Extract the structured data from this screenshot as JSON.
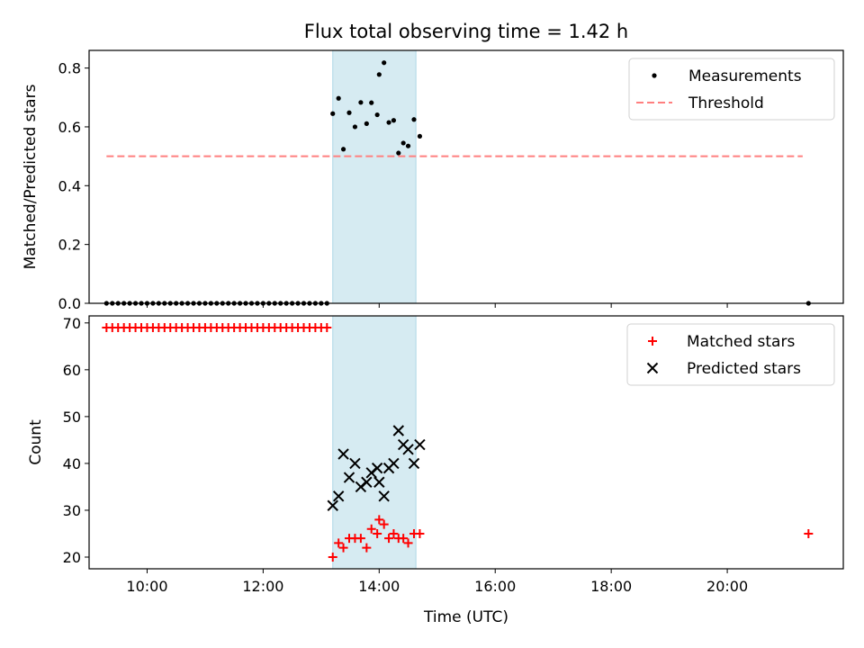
{
  "title": "Flux total observing time = 1.42 h",
  "chart_data": [
    {
      "type": "scatter",
      "panel": "top",
      "ylabel": "Matched/Predicted stars",
      "ylim": [
        0,
        0.86
      ],
      "yticks": [
        0.0,
        0.2,
        0.4,
        0.6,
        0.8
      ],
      "ytick_labels": [
        "0.0",
        "0.2",
        "0.4",
        "0.6",
        "0.8"
      ],
      "xlim": [
        "09:00",
        "22:00"
      ],
      "xticks": [
        "10:00",
        "12:00",
        "14:00",
        "16:00",
        "18:00",
        "20:00"
      ],
      "xtick_labels": [],
      "grid": false,
      "legend_position": "top-right",
      "shaded_span": {
        "x": [
          "13:12",
          "14:38"
        ],
        "color": "#add8e6"
      },
      "series": [
        {
          "name": "Measurements",
          "marker": "dot",
          "color": "#000000",
          "points": [
            {
              "x": "09:18",
              "y": 0
            },
            {
              "x": "09:24",
              "y": 0
            },
            {
              "x": "09:30",
              "y": 0
            },
            {
              "x": "09:36",
              "y": 0
            },
            {
              "x": "09:42",
              "y": 0
            },
            {
              "x": "09:48",
              "y": 0
            },
            {
              "x": "09:54",
              "y": 0
            },
            {
              "x": "10:00",
              "y": 0
            },
            {
              "x": "10:06",
              "y": 0
            },
            {
              "x": "10:12",
              "y": 0
            },
            {
              "x": "10:18",
              "y": 0
            },
            {
              "x": "10:24",
              "y": 0
            },
            {
              "x": "10:30",
              "y": 0
            },
            {
              "x": "10:36",
              "y": 0
            },
            {
              "x": "10:42",
              "y": 0
            },
            {
              "x": "10:48",
              "y": 0
            },
            {
              "x": "10:54",
              "y": 0
            },
            {
              "x": "11:00",
              "y": 0
            },
            {
              "x": "11:06",
              "y": 0
            },
            {
              "x": "11:12",
              "y": 0
            },
            {
              "x": "11:18",
              "y": 0
            },
            {
              "x": "11:24",
              "y": 0
            },
            {
              "x": "11:30",
              "y": 0
            },
            {
              "x": "11:36",
              "y": 0
            },
            {
              "x": "11:42",
              "y": 0
            },
            {
              "x": "11:48",
              "y": 0
            },
            {
              "x": "11:54",
              "y": 0
            },
            {
              "x": "12:00",
              "y": 0
            },
            {
              "x": "12:06",
              "y": 0
            },
            {
              "x": "12:12",
              "y": 0
            },
            {
              "x": "12:18",
              "y": 0
            },
            {
              "x": "12:24",
              "y": 0
            },
            {
              "x": "12:30",
              "y": 0
            },
            {
              "x": "12:36",
              "y": 0
            },
            {
              "x": "12:42",
              "y": 0
            },
            {
              "x": "12:48",
              "y": 0
            },
            {
              "x": "12:54",
              "y": 0
            },
            {
              "x": "13:00",
              "y": 0
            },
            {
              "x": "13:06",
              "y": 0
            },
            {
              "x": "13:12",
              "y": 0.645
            },
            {
              "x": "13:18",
              "y": 0.697
            },
            {
              "x": "13:23",
              "y": 0.524
            },
            {
              "x": "13:29",
              "y": 0.648
            },
            {
              "x": "13:35",
              "y": 0.6
            },
            {
              "x": "13:41",
              "y": 0.683
            },
            {
              "x": "13:47",
              "y": 0.611
            },
            {
              "x": "13:52",
              "y": 0.682
            },
            {
              "x": "13:58",
              "y": 0.641
            },
            {
              "x": "14:00",
              "y": 0.778
            },
            {
              "x": "14:05",
              "y": 0.818
            },
            {
              "x": "14:10",
              "y": 0.615
            },
            {
              "x": "14:15",
              "y": 0.622
            },
            {
              "x": "14:20",
              "y": 0.511
            },
            {
              "x": "14:25",
              "y": 0.545
            },
            {
              "x": "14:30",
              "y": 0.535
            },
            {
              "x": "14:36",
              "y": 0.625
            },
            {
              "x": "14:42",
              "y": 0.568
            },
            {
              "x": "21:24",
              "y": 0
            }
          ]
        },
        {
          "name": "Threshold",
          "line": "dashed",
          "color": "#ff7f7f",
          "points": [
            {
              "x": "09:18",
              "y": 0.5
            },
            {
              "x": "21:18",
              "y": 0.5
            }
          ]
        }
      ]
    },
    {
      "type": "scatter",
      "panel": "bottom",
      "xlabel": "Time (UTC)",
      "ylabel": "Count",
      "ylim": [
        17.5,
        71.5
      ],
      "yticks": [
        20,
        30,
        40,
        50,
        60,
        70
      ],
      "ytick_labels": [
        "20",
        "30",
        "40",
        "50",
        "60",
        "70"
      ],
      "xlim": [
        "09:00",
        "22:00"
      ],
      "xticks": [
        "10:00",
        "12:00",
        "14:00",
        "16:00",
        "18:00",
        "20:00"
      ],
      "xtick_labels": [
        "10:00",
        "12:00",
        "14:00",
        "16:00",
        "18:00",
        "20:00"
      ],
      "grid": false,
      "legend_position": "top-right",
      "shaded_span": {
        "x": [
          "13:12",
          "14:38"
        ],
        "color": "#add8e6"
      },
      "series": [
        {
          "name": "Matched stars",
          "marker": "plus",
          "color": "#ff0000",
          "points": [
            {
              "x": "09:18",
              "y": 69
            },
            {
              "x": "09:24",
              "y": 69
            },
            {
              "x": "09:30",
              "y": 69
            },
            {
              "x": "09:36",
              "y": 69
            },
            {
              "x": "09:42",
              "y": 69
            },
            {
              "x": "09:48",
              "y": 69
            },
            {
              "x": "09:54",
              "y": 69
            },
            {
              "x": "10:00",
              "y": 69
            },
            {
              "x": "10:06",
              "y": 69
            },
            {
              "x": "10:12",
              "y": 69
            },
            {
              "x": "10:18",
              "y": 69
            },
            {
              "x": "10:24",
              "y": 69
            },
            {
              "x": "10:30",
              "y": 69
            },
            {
              "x": "10:36",
              "y": 69
            },
            {
              "x": "10:42",
              "y": 69
            },
            {
              "x": "10:48",
              "y": 69
            },
            {
              "x": "10:54",
              "y": 69
            },
            {
              "x": "11:00",
              "y": 69
            },
            {
              "x": "11:06",
              "y": 69
            },
            {
              "x": "11:12",
              "y": 69
            },
            {
              "x": "11:18",
              "y": 69
            },
            {
              "x": "11:24",
              "y": 69
            },
            {
              "x": "11:30",
              "y": 69
            },
            {
              "x": "11:36",
              "y": 69
            },
            {
              "x": "11:42",
              "y": 69
            },
            {
              "x": "11:48",
              "y": 69
            },
            {
              "x": "11:54",
              "y": 69
            },
            {
              "x": "12:00",
              "y": 69
            },
            {
              "x": "12:06",
              "y": 69
            },
            {
              "x": "12:12",
              "y": 69
            },
            {
              "x": "12:18",
              "y": 69
            },
            {
              "x": "12:24",
              "y": 69
            },
            {
              "x": "12:30",
              "y": 69
            },
            {
              "x": "12:36",
              "y": 69
            },
            {
              "x": "12:42",
              "y": 69
            },
            {
              "x": "12:48",
              "y": 69
            },
            {
              "x": "12:54",
              "y": 69
            },
            {
              "x": "13:00",
              "y": 69
            },
            {
              "x": "13:06",
              "y": 69
            },
            {
              "x": "13:12",
              "y": 20
            },
            {
              "x": "13:18",
              "y": 23
            },
            {
              "x": "13:23",
              "y": 22
            },
            {
              "x": "13:29",
              "y": 24
            },
            {
              "x": "13:35",
              "y": 24
            },
            {
              "x": "13:41",
              "y": 24
            },
            {
              "x": "13:47",
              "y": 22
            },
            {
              "x": "13:52",
              "y": 26
            },
            {
              "x": "13:58",
              "y": 25
            },
            {
              "x": "14:00",
              "y": 28
            },
            {
              "x": "14:05",
              "y": 27
            },
            {
              "x": "14:10",
              "y": 24
            },
            {
              "x": "14:15",
              "y": 25
            },
            {
              "x": "14:20",
              "y": 24
            },
            {
              "x": "14:25",
              "y": 24
            },
            {
              "x": "14:30",
              "y": 23
            },
            {
              "x": "14:36",
              "y": 25
            },
            {
              "x": "14:42",
              "y": 25
            },
            {
              "x": "21:24",
              "y": 25
            }
          ]
        },
        {
          "name": "Predicted stars",
          "marker": "x",
          "color": "#000000",
          "points": [
            {
              "x": "13:12",
              "y": 31
            },
            {
              "x": "13:18",
              "y": 33
            },
            {
              "x": "13:23",
              "y": 42
            },
            {
              "x": "13:29",
              "y": 37
            },
            {
              "x": "13:35",
              "y": 40
            },
            {
              "x": "13:41",
              "y": 35
            },
            {
              "x": "13:47",
              "y": 36
            },
            {
              "x": "13:52",
              "y": 38
            },
            {
              "x": "13:58",
              "y": 39
            },
            {
              "x": "14:00",
              "y": 36
            },
            {
              "x": "14:05",
              "y": 33
            },
            {
              "x": "14:10",
              "y": 39
            },
            {
              "x": "14:15",
              "y": 40
            },
            {
              "x": "14:20",
              "y": 47
            },
            {
              "x": "14:25",
              "y": 44
            },
            {
              "x": "14:30",
              "y": 43
            },
            {
              "x": "14:36",
              "y": 40
            },
            {
              "x": "14:42",
              "y": 44
            }
          ]
        }
      ]
    }
  ]
}
